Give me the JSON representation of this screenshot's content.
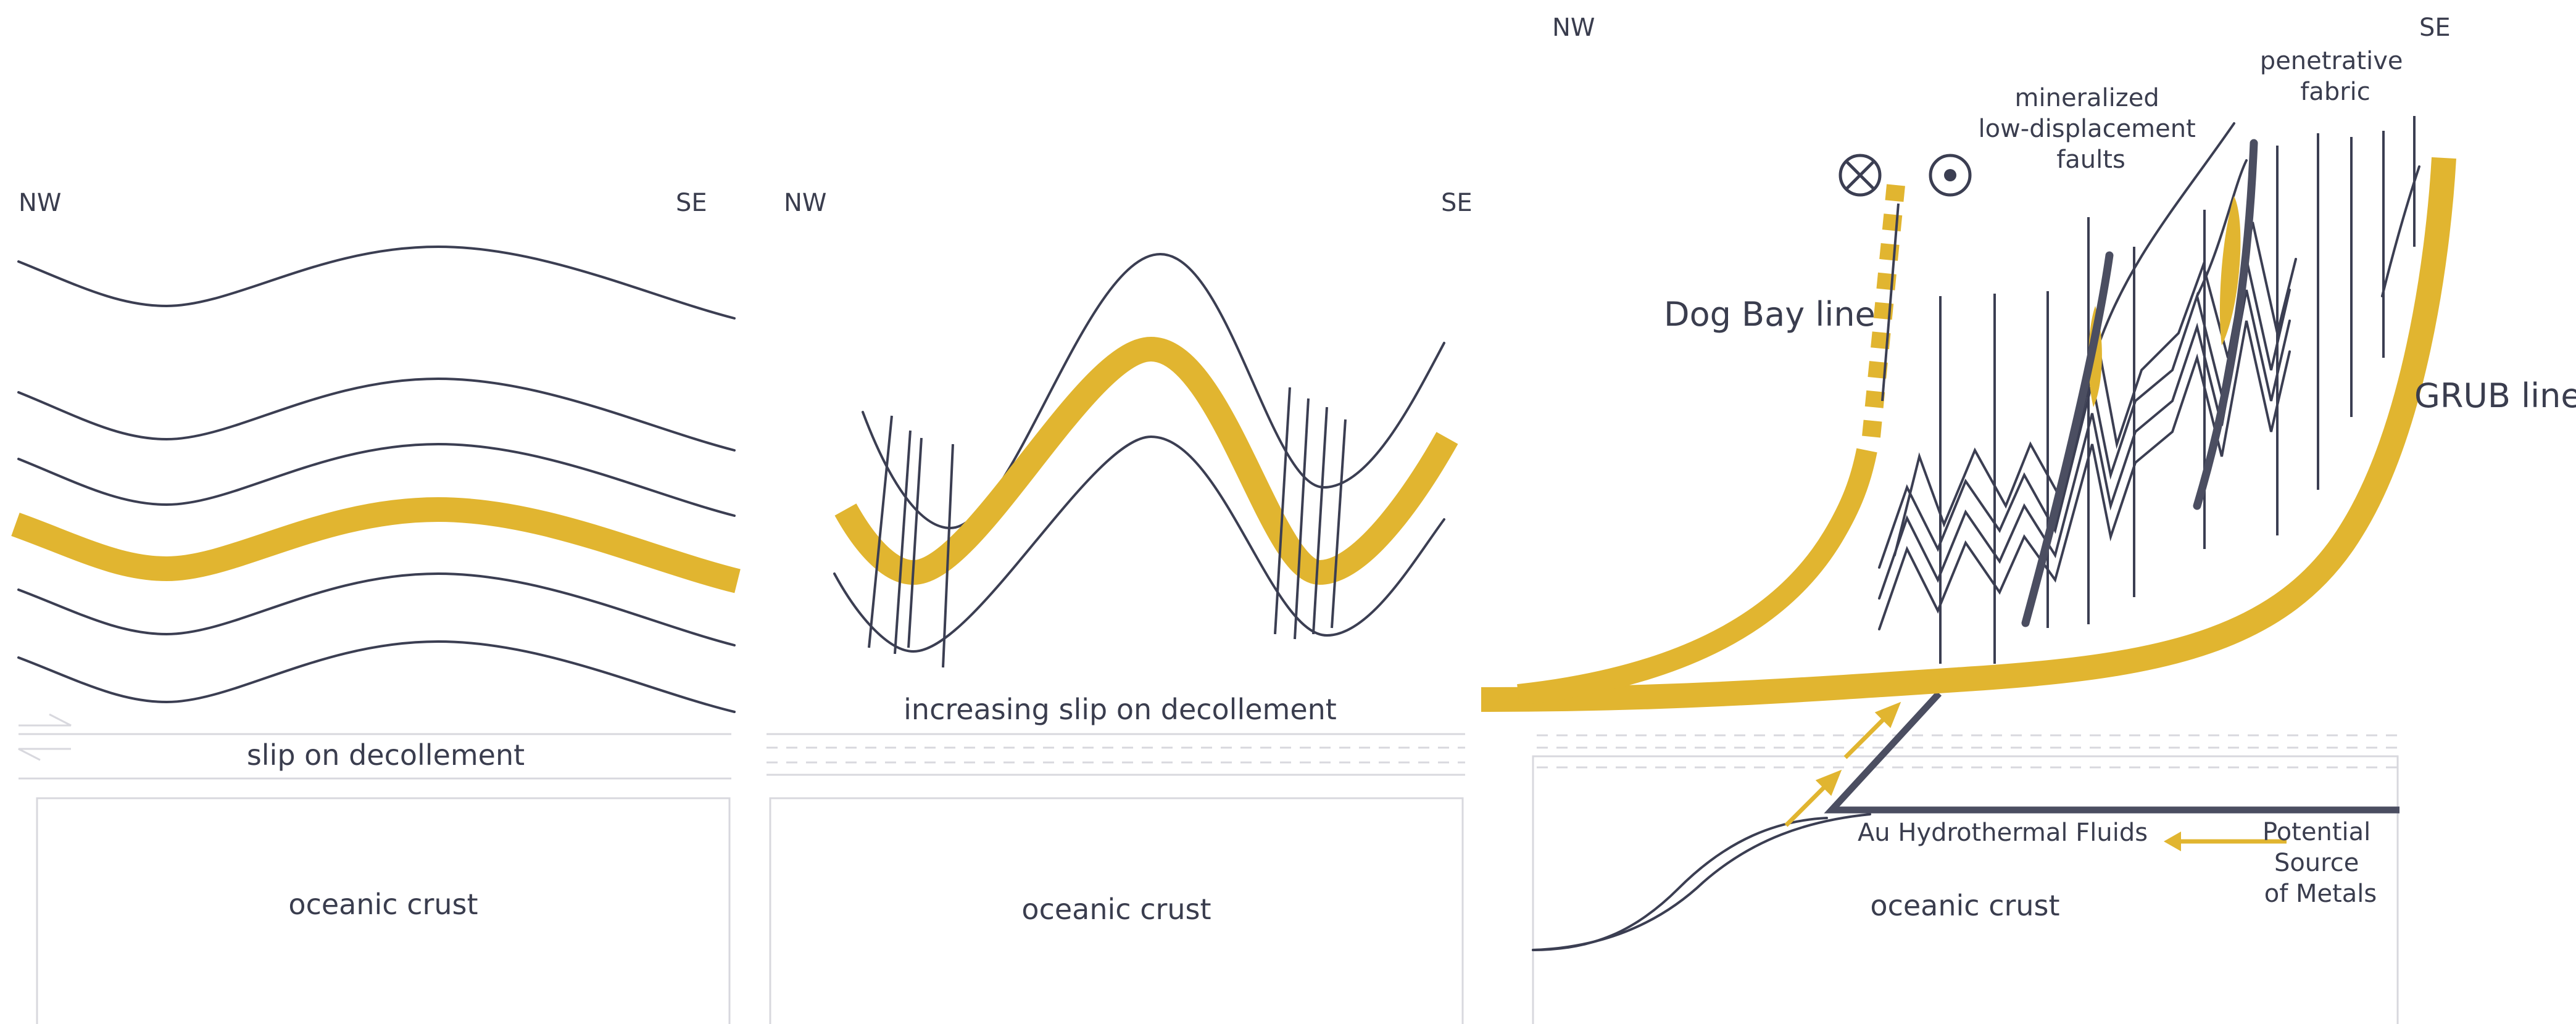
{
  "panel1": {
    "nw": "NW",
    "se": "SE",
    "slip": "slip on decollement",
    "crust": "oceanic crust"
  },
  "panel2": {
    "nw": "NW",
    "se": "SE",
    "slip": "increasing  slip on decollement",
    "crust": "oceanic crust"
  },
  "panel3": {
    "nw": "NW",
    "se": "SE",
    "dog_bay": "Dog Bay line",
    "grub": "GRUB line",
    "faults": [
      "mineralized",
      "low-displacement",
      "faults"
    ],
    "fabric": [
      "penetrative",
      "fabric"
    ],
    "fluids": "Au Hydrothermal Fluids",
    "source": [
      "Potential",
      "Source",
      "of Metals"
    ],
    "crust": "oceanic crust"
  },
  "colors": {
    "gold": "#e1b530",
    "ink": "#3b3e52",
    "frame": "#d8d8de"
  }
}
